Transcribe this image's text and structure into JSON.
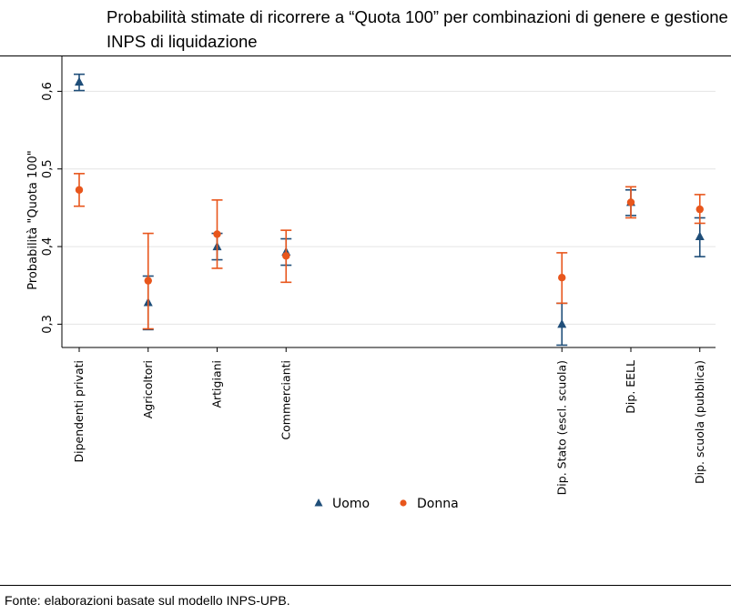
{
  "title": "Probabilità stimate di ricorrere a “Quota 100” per combinazioni di genere e gestione INPS di liquidazione",
  "source": "Fonte: elaborazioni basate sul modello INPS-UPB.",
  "colors": {
    "uomo": "#1f4e79",
    "donna": "#e8561c",
    "grid": "#e4e4e4",
    "axis": "#000000"
  },
  "chart_data": {
    "type": "scatter",
    "ylabel": "Probabilità \"Quota 100\"",
    "xlabel": "",
    "ylim": [
      0.27,
      0.645
    ],
    "yticks": [
      0.3,
      0.4,
      0.5,
      0.6
    ],
    "ytick_labels": [
      "0,3",
      "0,4",
      "0,5",
      "0,6"
    ],
    "grid": true,
    "legend_position": "bottom-center",
    "categories": [
      {
        "label": "Dipendenti privati",
        "slot": 0
      },
      {
        "label": "Agricoltori",
        "slot": 1
      },
      {
        "label": "Artigiani",
        "slot": 2
      },
      {
        "label": "Commercianti",
        "slot": 3
      },
      {
        "label": "Dip. Stato (escl. scuola)",
        "slot": 7
      },
      {
        "label": "Dip. EELL",
        "slot": 8
      },
      {
        "label": "Dip. scuola (pubblica)",
        "slot": 9
      }
    ],
    "series": [
      {
        "name": "Uomo",
        "marker": "triangle",
        "color": "#1f4e79",
        "values": [
          0.612,
          0.328,
          0.4,
          0.393,
          0.3,
          0.457,
          0.413
        ],
        "ci_low": [
          0.601,
          0.293,
          0.383,
          0.376,
          0.273,
          0.44,
          0.387
        ],
        "ci_high": [
          0.622,
          0.362,
          0.417,
          0.41,
          0.327,
          0.473,
          0.437
        ]
      },
      {
        "name": "Donna",
        "marker": "circle",
        "color": "#e8561c",
        "values": [
          0.473,
          0.356,
          0.416,
          0.388,
          0.36,
          0.457,
          0.448
        ],
        "ci_low": [
          0.452,
          0.294,
          0.372,
          0.354,
          0.327,
          0.437,
          0.43
        ],
        "ci_high": [
          0.494,
          0.417,
          0.46,
          0.421,
          0.392,
          0.477,
          0.467
        ]
      }
    ]
  }
}
